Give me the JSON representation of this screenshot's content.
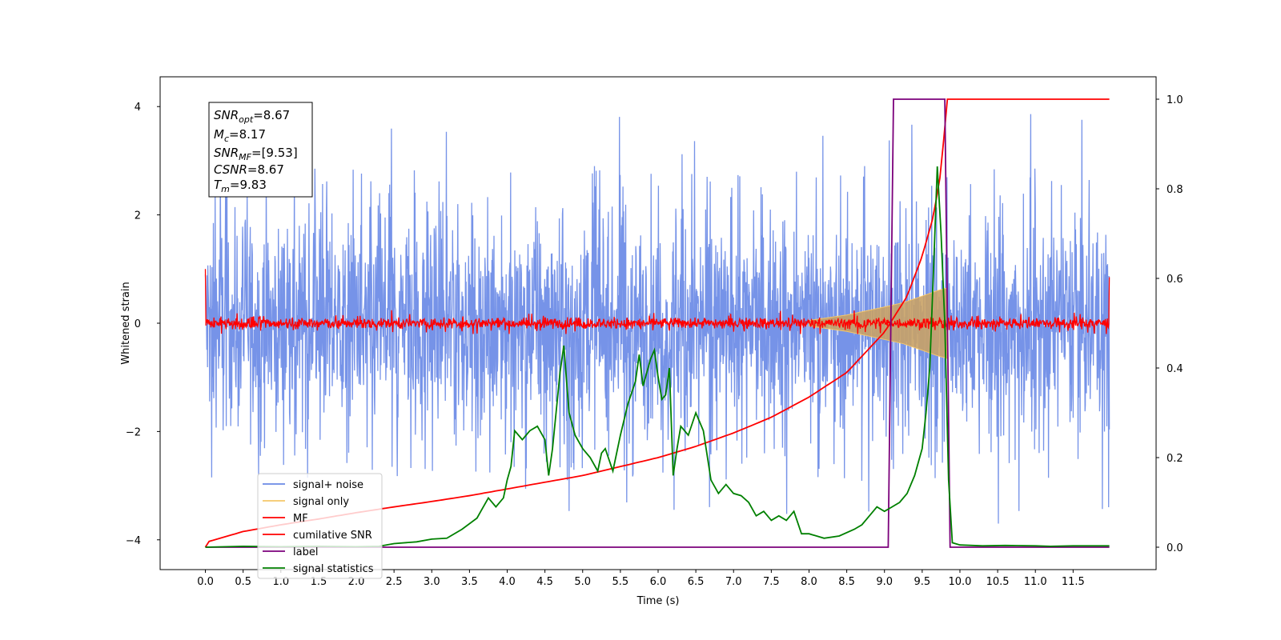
{
  "chart_data": {
    "type": "line",
    "xlabel": "Time (s)",
    "ylabel": "Whitened strain",
    "xlim": [
      -0.6,
      12.6
    ],
    "ylim": [
      -4.55,
      4.55
    ],
    "y2lim": [
      -0.05,
      1.05
    ],
    "xticks": [
      "0.0",
      "0.5",
      "1.0",
      "1.5",
      "2.0",
      "2.5",
      "3.0",
      "3.5",
      "4.0",
      "4.5",
      "5.0",
      "5.5",
      "6.0",
      "6.5",
      "7.0",
      "7.5",
      "8.0",
      "8.5",
      "9.0",
      "9.5",
      "10.0",
      "10.5",
      "11.0",
      "11.5"
    ],
    "yticks": [
      "-4",
      "-2",
      "0",
      "2",
      "4"
    ],
    "y2ticks": [
      "0.0",
      "0.2",
      "0.4",
      "0.6",
      "0.8",
      "1.0"
    ],
    "grid": false,
    "legend": {
      "position": "lower-left",
      "entries": [
        {
          "label": "signal+ noise",
          "color": "#6a8ae6"
        },
        {
          "label": "signal only",
          "color": "#f5c76a"
        },
        {
          "label": "MF",
          "color": "#ff0000"
        },
        {
          "label": "cumilative SNR",
          "color": "#ff0000"
        },
        {
          "label": "label",
          "color": "#7b007b"
        },
        {
          "label": "signal statistics",
          "color": "#008000"
        }
      ]
    },
    "annotation": {
      "lines": [
        {
          "sym": "SNR",
          "sub": "opt",
          "value": "=8.67"
        },
        {
          "sym": "M",
          "sub": "c",
          "value": "=8.17"
        },
        {
          "sym": "SNR",
          "sub": "MF",
          "value": "=[9.53]"
        },
        {
          "sym": "CSNR",
          "sub": "",
          "value": "=8.67"
        },
        {
          "sym": "T",
          "sub": "m",
          "value": "=9.83"
        }
      ]
    },
    "series": [
      {
        "name": "signal+ noise",
        "axis": "left",
        "color": "#6a8ae6",
        "x_range": [
          0.0,
          11.98
        ],
        "amplitude_envelope": [
          -3.7,
          4.1
        ],
        "description_values": "noise band roughly -2.5..2.5 with spikes to about ±4"
      },
      {
        "name": "signal only",
        "axis": "left",
        "color": "#f5c76a",
        "x": [
          8.0,
          8.5,
          9.0,
          9.25,
          9.5,
          9.7,
          9.83
        ],
        "envelope": [
          0.05,
          0.15,
          0.3,
          0.38,
          0.5,
          0.6,
          0.65
        ]
      },
      {
        "name": "MF",
        "axis": "left",
        "color": "#ff0000",
        "x_range": [
          0.0,
          11.98
        ],
        "band": [
          -0.15,
          0.15
        ],
        "endpoints": {
          "start": 1.0,
          "end": 0.85
        }
      },
      {
        "name": "cumilative SNR",
        "axis": "right",
        "color": "#ff0000",
        "x": [
          0.0,
          0.05,
          0.5,
          1.0,
          1.5,
          2.0,
          2.5,
          3.0,
          3.5,
          4.0,
          4.5,
          5.0,
          5.5,
          6.0,
          6.5,
          7.0,
          7.5,
          8.0,
          8.5,
          9.0,
          9.3,
          9.5,
          9.65,
          9.75,
          9.83,
          11.98
        ],
        "values": [
          0.0,
          0.013,
          0.035,
          0.05,
          0.063,
          0.077,
          0.09,
          0.102,
          0.115,
          0.13,
          0.145,
          0.16,
          0.18,
          0.2,
          0.225,
          0.255,
          0.29,
          0.335,
          0.39,
          0.48,
          0.56,
          0.65,
          0.74,
          0.84,
          1.0,
          1.0
        ]
      },
      {
        "name": "label",
        "axis": "right",
        "color": "#7b007b",
        "x": [
          0.0,
          9.05,
          9.12,
          9.8,
          9.87,
          11.98
        ],
        "values": [
          0.0,
          0.0,
          1.0,
          1.0,
          0.0,
          0.0
        ]
      },
      {
        "name": "signal statistics",
        "axis": "right",
        "color": "#008000",
        "x": [
          0.0,
          0.5,
          1.0,
          1.5,
          2.0,
          2.3,
          2.5,
          2.8,
          3.0,
          3.2,
          3.4,
          3.6,
          3.65,
          3.75,
          3.85,
          3.95,
          4.0,
          4.05,
          4.1,
          4.2,
          4.25,
          4.3,
          4.4,
          4.5,
          4.55,
          4.6,
          4.7,
          4.75,
          4.82,
          4.9,
          5.0,
          5.1,
          5.2,
          5.25,
          5.3,
          5.4,
          5.5,
          5.6,
          5.7,
          5.75,
          5.8,
          5.9,
          5.95,
          6.0,
          6.05,
          6.1,
          6.15,
          6.2,
          6.25,
          6.3,
          6.4,
          6.5,
          6.6,
          6.7,
          6.8,
          6.9,
          7.0,
          7.1,
          7.2,
          7.3,
          7.4,
          7.5,
          7.6,
          7.7,
          7.8,
          7.9,
          8.0,
          8.2,
          8.4,
          8.6,
          8.7,
          8.8,
          8.9,
          9.0,
          9.1,
          9.2,
          9.3,
          9.4,
          9.5,
          9.55,
          9.6,
          9.65,
          9.7,
          9.75,
          9.8,
          9.85,
          9.9,
          10.0,
          10.3,
          10.6,
          11.0,
          11.2,
          11.5,
          11.98
        ],
        "values": [
          0.0,
          0.002,
          0.001,
          0.002,
          0.001,
          0.002,
          0.008,
          0.012,
          0.018,
          0.02,
          0.04,
          0.065,
          0.08,
          0.11,
          0.09,
          0.11,
          0.15,
          0.18,
          0.26,
          0.24,
          0.25,
          0.26,
          0.27,
          0.24,
          0.16,
          0.22,
          0.39,
          0.45,
          0.3,
          0.25,
          0.22,
          0.2,
          0.17,
          0.21,
          0.22,
          0.17,
          0.25,
          0.32,
          0.37,
          0.43,
          0.36,
          0.42,
          0.44,
          0.38,
          0.33,
          0.34,
          0.4,
          0.16,
          0.22,
          0.27,
          0.25,
          0.3,
          0.26,
          0.15,
          0.12,
          0.14,
          0.12,
          0.115,
          0.1,
          0.07,
          0.08,
          0.06,
          0.07,
          0.06,
          0.08,
          0.03,
          0.03,
          0.02,
          0.025,
          0.04,
          0.05,
          0.07,
          0.09,
          0.08,
          0.09,
          0.1,
          0.12,
          0.16,
          0.22,
          0.3,
          0.4,
          0.62,
          0.85,
          0.7,
          0.5,
          0.15,
          0.01,
          0.005,
          0.003,
          0.004,
          0.003,
          0.002,
          0.003,
          0.003
        ]
      }
    ]
  }
}
